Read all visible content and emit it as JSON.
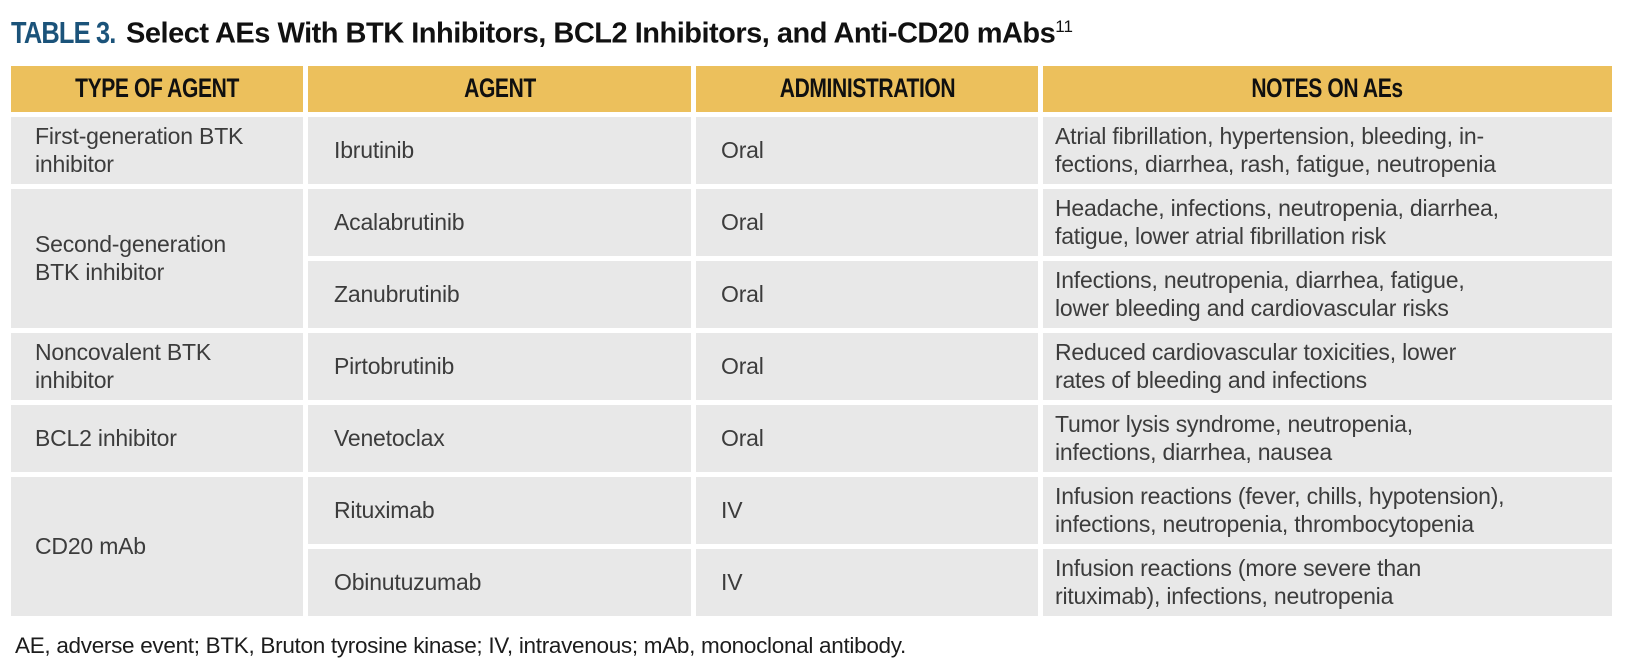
{
  "title": {
    "label": "TABLE 3.",
    "text": " Select AEs With BTK Inhibitors, BCL2 Inhibitors, and Anti-CD20 mAbs",
    "reference": "11"
  },
  "table": {
    "headers": [
      "TYPE OF AGENT",
      "AGENT",
      "ADMINISTRATION",
      "NOTES ON AEs"
    ],
    "types": [
      {
        "text": "First-generation BTK inhibitor",
        "rowspan": 1
      },
      {
        "text": "Second-generation BTK inhibitor",
        "rowspan": 2
      },
      {
        "text": "Noncovalent BTK inhibitor",
        "rowspan": 1
      },
      {
        "text": "BCL2 inhibitor",
        "rowspan": 1
      },
      {
        "text": "CD20 mAb",
        "rowspan": 2
      }
    ],
    "rows": [
      {
        "agent": "Ibrutinib",
        "administration": "Oral",
        "notes": "Atrial fibrillation, hypertension, bleeding, in-\nfections, diarrhea, rash, fatigue, neutropenia"
      },
      {
        "agent": "Acalabrutinib",
        "administration": "Oral",
        "notes": "Headache, infections, neutropenia, diarrhea,\nfatigue, lower atrial fibrillation risk"
      },
      {
        "agent": "Zanubrutinib",
        "administration": "Oral",
        "notes": "Infections, neutropenia, diarrhea, fatigue,\nlower bleeding and cardiovascular risks"
      },
      {
        "agent": "Pirtobrutinib",
        "administration": "Oral",
        "notes": "Reduced cardiovascular toxicities, lower\nrates of bleeding and infections"
      },
      {
        "agent": "Venetoclax",
        "administration": "Oral",
        "notes": "Tumor lysis syndrome, neutropenia,\ninfections, diarrhea, nausea"
      },
      {
        "agent": "Rituximab",
        "administration": "IV",
        "notes": "Infusion reactions (fever, chills, hypotension),\ninfections, neutropenia, thrombocytopenia"
      },
      {
        "agent": "Obinutuzumab",
        "administration": "IV",
        "notes": "Infusion reactions (more severe than\nrituximab), infections, neutropenia"
      }
    ]
  },
  "footnote": "AE, adverse event; BTK, Bruton tyrosine kinase; IV, intravenous; mAb, monoclonal antibody.",
  "colors": {
    "header_bg": "#ECC05C",
    "cell_bg": "#E8E8E8",
    "title_accent": "#1B537A",
    "body_text": "#3C3C3C"
  }
}
